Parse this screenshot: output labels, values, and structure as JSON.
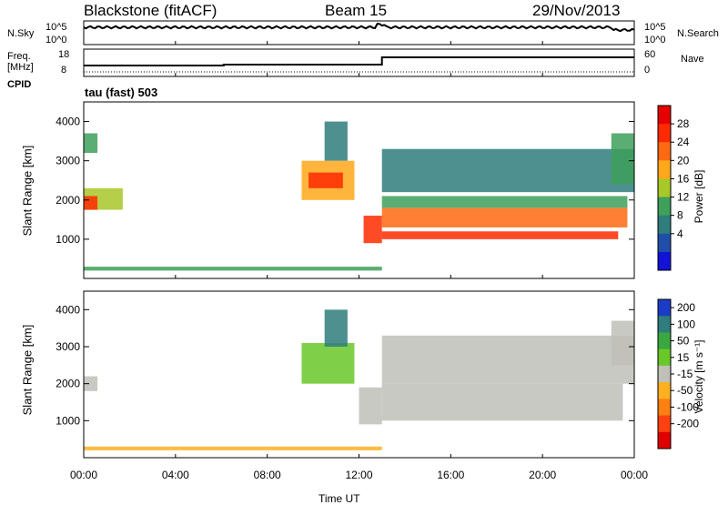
{
  "header": {
    "radar": "Blackstone (fitACF)",
    "beam": "Beam 15",
    "date": "29/Nov/2013"
  },
  "top_panel": {
    "left_label": "N.Sky",
    "right_label": "N.Search",
    "left_ticks": [
      "10^5",
      "10^0"
    ],
    "right_ticks": [
      "10^5",
      "10^0"
    ]
  },
  "freq_panel": {
    "left_label_1": "Freq.",
    "left_label_2": "[MHz]",
    "right_label": "Nave",
    "left_ticks": [
      "18",
      "8"
    ],
    "right_ticks": [
      "60",
      "0"
    ],
    "cpid_label": "CPID",
    "cpid_text": "tau (fast) 503"
  },
  "x_axis": {
    "label": "Time UT",
    "ticks": [
      "00:00",
      "04:00",
      "08:00",
      "12:00",
      "16:00",
      "20:00",
      "00:00"
    ]
  },
  "colors": {
    "power": [
      "#1212d8",
      "#1f4fa8",
      "#2f7d7d",
      "#3ea05a",
      "#a8c828",
      "#ffa81a",
      "#ff6a10",
      "#ff2a00",
      "#e60000"
    ],
    "velocity": [
      "#1c3cc8",
      "#2f7d7d",
      "#3aa840",
      "#68c828",
      "#c0c0b8",
      "#ffb020",
      "#ff8010",
      "#ff4010",
      "#e00000"
    ]
  },
  "chart_data": [
    {
      "type": "heatmap",
      "title": "",
      "xlabel": "",
      "ylabel": "Slant Range [km]",
      "xlim": [
        0,
        24
      ],
      "ylim": [
        0,
        4500
      ],
      "yticks": [
        "1000",
        "2000",
        "3000",
        "4000"
      ],
      "colorbar": {
        "label": "Power [dB]",
        "ticks": [
          "28",
          "24",
          "20",
          "16",
          "12",
          "8",
          "4"
        ],
        "range": [
          0,
          30
        ]
      },
      "regions": [
        {
          "t0": 0.0,
          "t1": 1.7,
          "r0": 1750,
          "r1": 2300,
          "value": 14
        },
        {
          "t0": 0.0,
          "t1": 0.6,
          "r0": 1750,
          "r1": 2100,
          "value": 25
        },
        {
          "t0": 0.0,
          "t1": 0.6,
          "r0": 3200,
          "r1": 3700,
          "value": 10
        },
        {
          "t0": 0.0,
          "t1": 13.0,
          "r0": 200,
          "r1": 300,
          "value": 10
        },
        {
          "t0": 9.5,
          "t1": 11.8,
          "r0": 2000,
          "r1": 3000,
          "value": 18
        },
        {
          "t0": 9.8,
          "t1": 11.3,
          "r0": 2300,
          "r1": 2700,
          "value": 25
        },
        {
          "t0": 10.5,
          "t1": 11.5,
          "r0": 3000,
          "r1": 4000,
          "value": 8
        },
        {
          "t0": 12.2,
          "t1": 13.0,
          "r0": 900,
          "r1": 1600,
          "value": 24
        },
        {
          "t0": 13.0,
          "t1": 23.3,
          "r0": 1000,
          "r1": 1200,
          "value": 26
        },
        {
          "t0": 13.0,
          "t1": 23.7,
          "r0": 1300,
          "r1": 1800,
          "value": 20
        },
        {
          "t0": 13.0,
          "t1": 23.7,
          "r0": 1800,
          "r1": 2100,
          "value": 12
        },
        {
          "t0": 13.0,
          "t1": 24.0,
          "r0": 2200,
          "r1": 3300,
          "value": 8
        },
        {
          "t0": 23.0,
          "t1": 24.0,
          "r0": 2400,
          "r1": 3700,
          "value": 11
        }
      ]
    },
    {
      "type": "heatmap",
      "title": "",
      "xlabel": "Time UT",
      "ylabel": "Slant Range [km]",
      "xlim": [
        0,
        24
      ],
      "ylim": [
        0,
        4500
      ],
      "yticks": [
        "1000",
        "2000",
        "3000",
        "4000"
      ],
      "colorbar": {
        "label": "Velocity [m s⁻¹]",
        "ticks": [
          "200",
          "100",
          "50",
          "15",
          "-15",
          "-50",
          "-100",
          "-200"
        ],
        "range": [
          -250,
          250
        ]
      },
      "regions": [
        {
          "t0": 0.0,
          "t1": 0.6,
          "r0": 1800,
          "r1": 2200,
          "value": 0
        },
        {
          "t0": 0.0,
          "t1": 13.0,
          "r0": 200,
          "r1": 300,
          "value": -40
        },
        {
          "t0": 9.5,
          "t1": 11.8,
          "r0": 2000,
          "r1": 3100,
          "value": 80
        },
        {
          "t0": 10.5,
          "t1": 11.5,
          "r0": 3000,
          "r1": 4000,
          "value": 150
        },
        {
          "t0": 12.0,
          "t1": 13.0,
          "r0": 900,
          "r1": 1900,
          "value": 20
        },
        {
          "t0": 13.0,
          "t1": 23.5,
          "r0": 1000,
          "r1": 2000,
          "value": 0
        },
        {
          "t0": 13.0,
          "t1": 24.0,
          "r0": 2000,
          "r1": 3300,
          "value": 5
        },
        {
          "t0": 23.0,
          "t1": 24.0,
          "r0": 2500,
          "r1": 3700,
          "value": 0
        }
      ]
    }
  ]
}
